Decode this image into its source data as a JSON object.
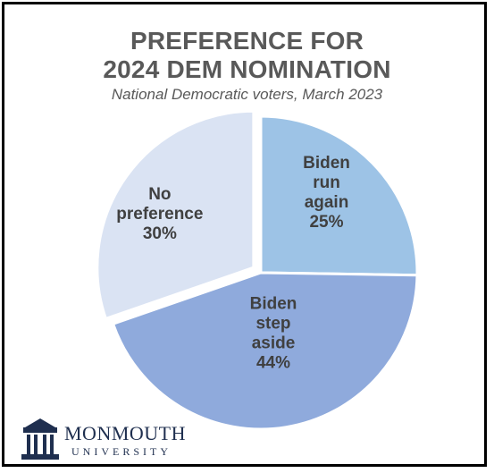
{
  "title_line1": "PREFERENCE FOR",
  "title_line2": "2024 DEM NOMINATION",
  "subtitle": "National Democratic voters, March 2023",
  "chart_data": {
    "type": "pie",
    "title": "PREFERENCE FOR 2024 DEM NOMINATION",
    "subtitle": "National Democratic voters, March 2023",
    "slices": [
      {
        "label_lines": [
          "Biden",
          "run",
          "again",
          "25%"
        ],
        "value": 25,
        "color": "#9dc3e6",
        "exploded": false
      },
      {
        "label_lines": [
          "Biden",
          "step",
          "aside",
          "44%"
        ],
        "value": 44,
        "color": "#8faadc",
        "exploded": false
      },
      {
        "label_lines": [
          "No",
          "preference",
          "30%"
        ],
        "value": 30,
        "color": "#dae3f3",
        "exploded": true
      }
    ]
  },
  "logo": {
    "name": "MONMOUTH",
    "sub": "UNIVERSITY",
    "icon": "university-building-icon",
    "color": "#1f2f4f"
  }
}
